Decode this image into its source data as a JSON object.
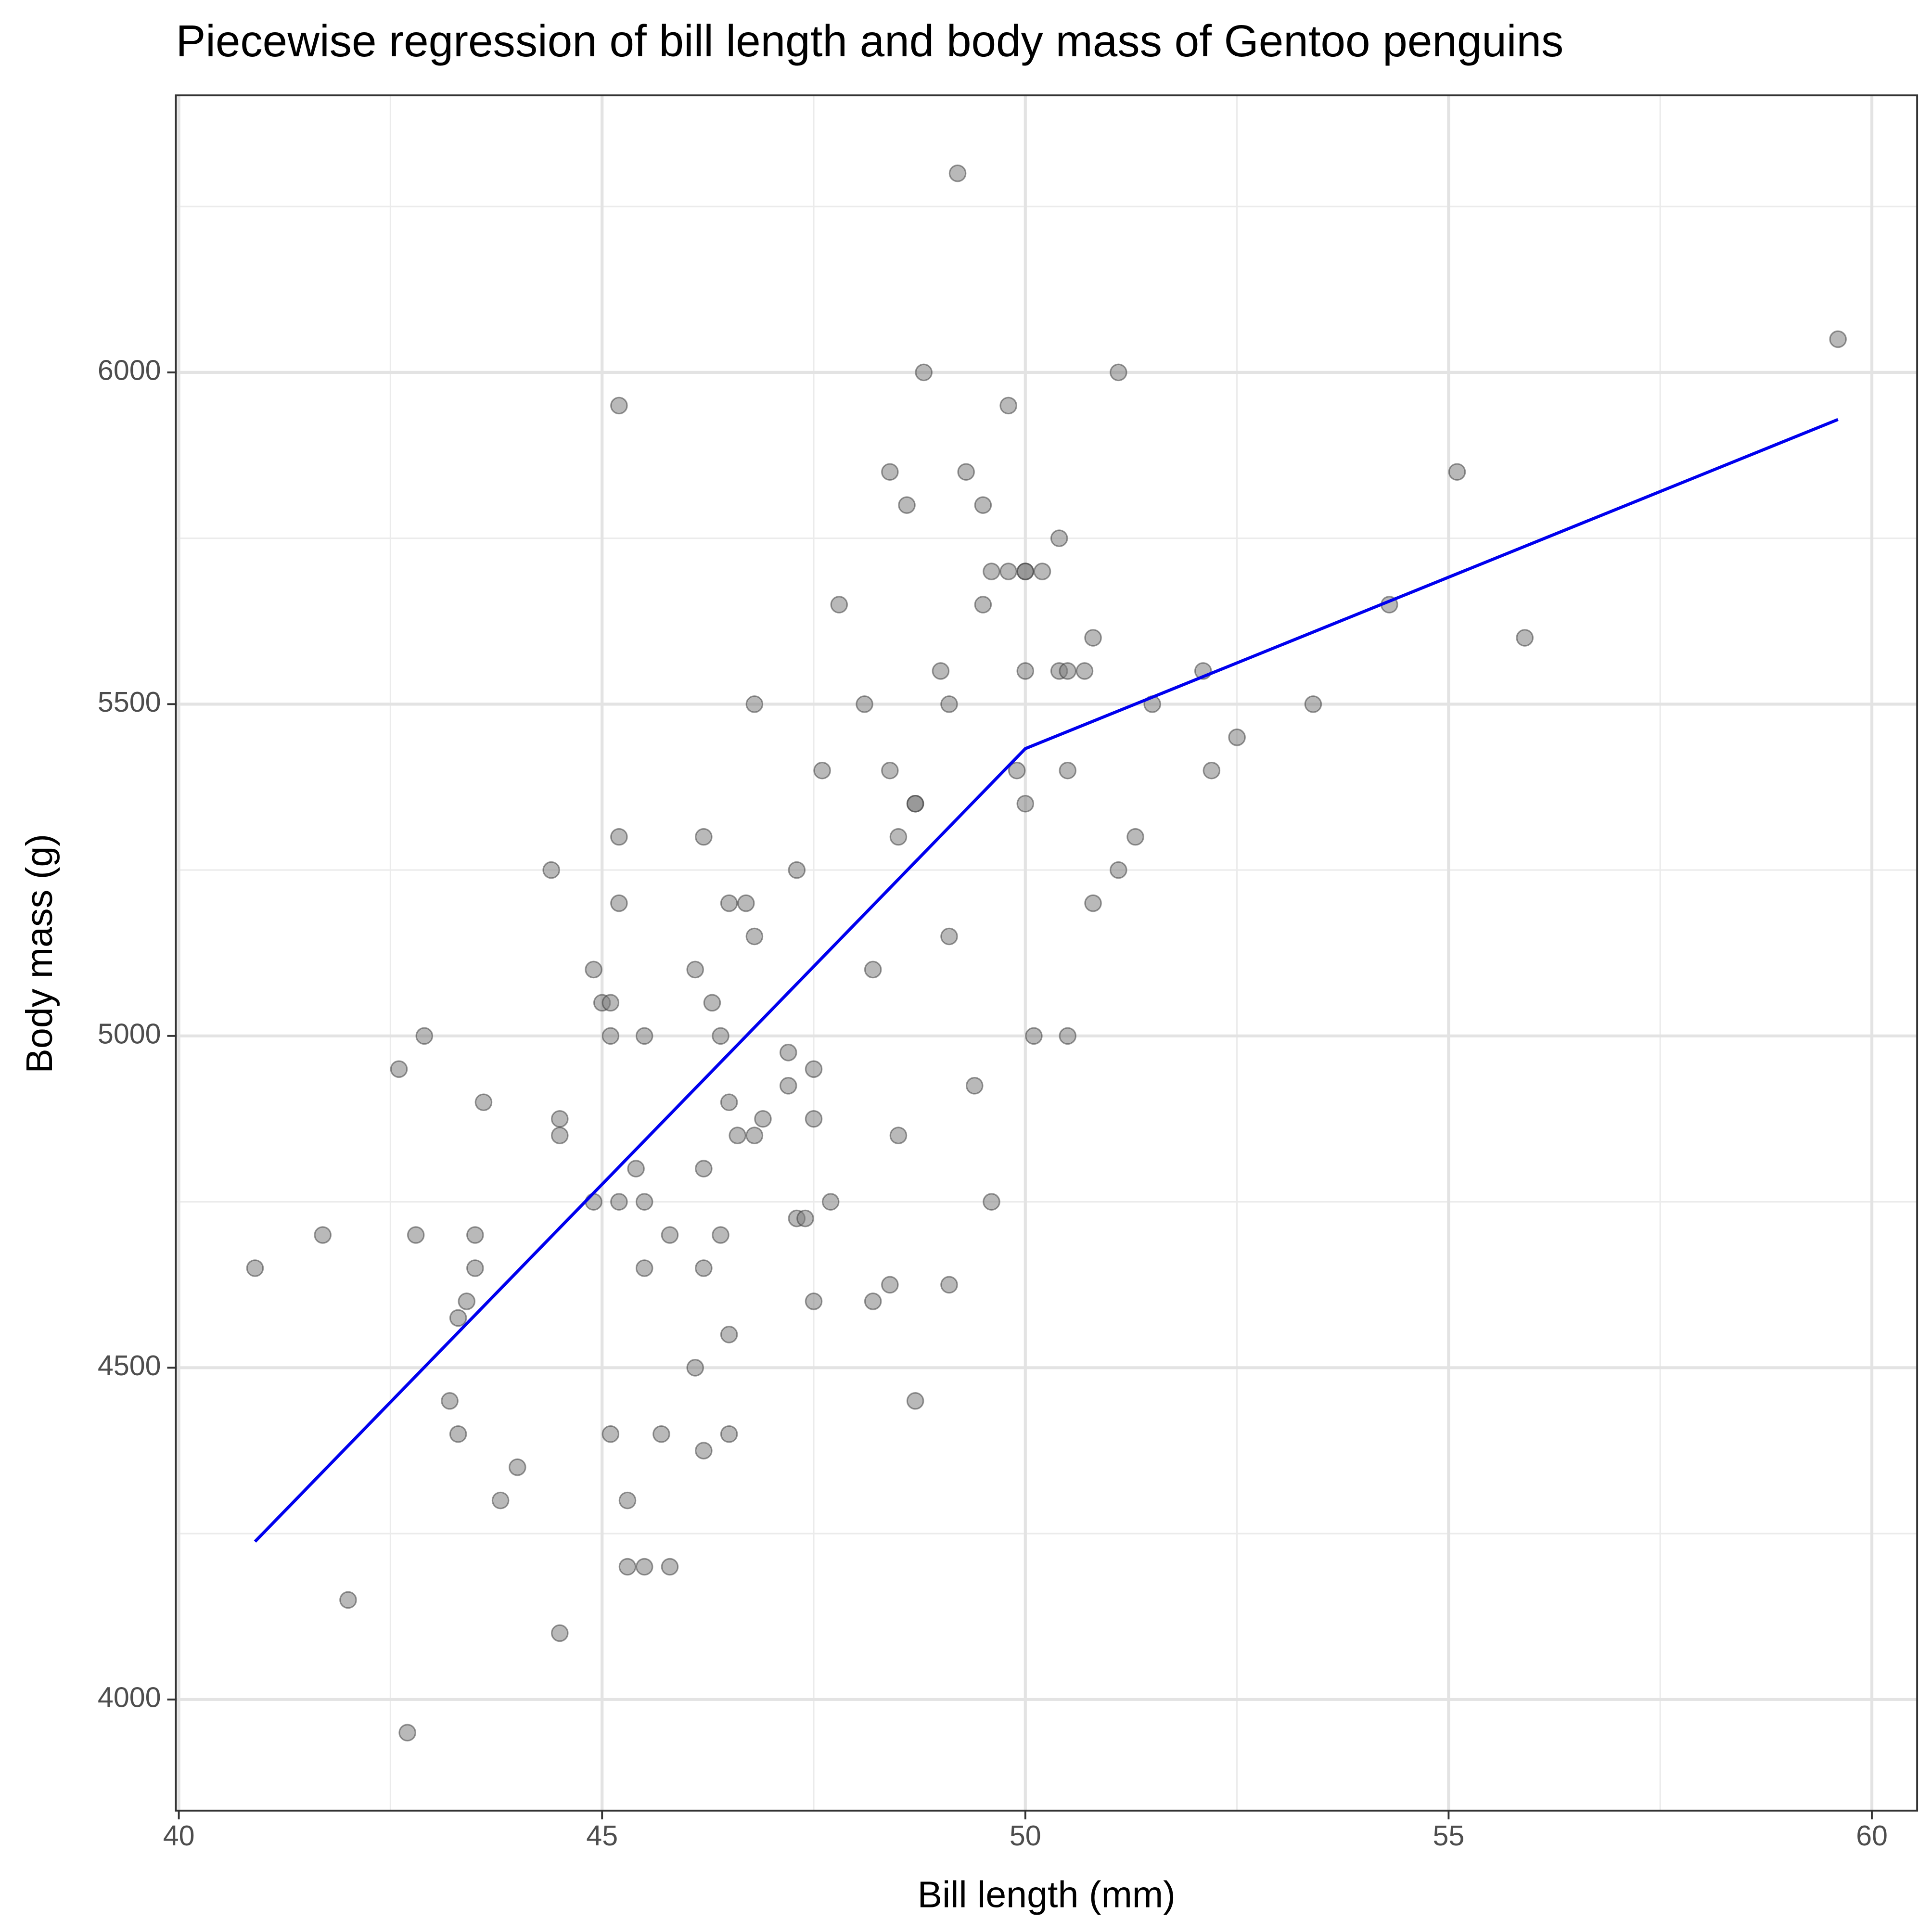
{
  "chart_data": {
    "type": "scatter",
    "title": "Piecewise regression of bill length and body mass of Gentoo penguins",
    "x_label": "Bill length (mm)",
    "y_label": "Body mass (g)",
    "xlim": [
      39.965,
      60.535
    ],
    "ylim": [
      3832.5,
      6417.5
    ],
    "xticks": [
      40,
      45,
      50,
      55,
      60
    ],
    "yticks": [
      4000,
      4500,
      5000,
      5500,
      6000
    ],
    "x_minor_grid": [
      42.5,
      47.5,
      52.5,
      57.5
    ],
    "y_minor_grid": [
      4250,
      4750,
      5250,
      5750,
      6250
    ],
    "grid": true,
    "points": {
      "color": "#7f7f7f",
      "x": [
        40.9,
        41.7,
        42.0,
        42.6,
        42.7,
        42.8,
        42.9,
        43.2,
        43.3,
        43.3,
        43.4,
        43.5,
        43.5,
        43.6,
        43.8,
        44.0,
        44.4,
        44.5,
        44.5,
        44.5,
        44.9,
        44.9,
        45.0,
        45.1,
        45.1,
        45.1,
        45.2,
        45.2,
        45.2,
        45.2,
        45.3,
        45.3,
        45.4,
        45.5,
        45.5,
        45.5,
        45.5,
        45.7,
        45.8,
        45.8,
        46.1,
        46.1,
        46.2,
        46.2,
        46.2,
        46.2,
        46.3,
        46.4,
        46.4,
        46.5,
        46.5,
        46.5,
        46.5,
        46.6,
        46.7,
        46.8,
        46.8,
        46.8,
        46.9,
        47.2,
        47.2,
        47.3,
        47.3,
        47.4,
        47.5,
        47.5,
        47.5,
        47.6,
        47.7,
        47.8,
        48.1,
        48.2,
        48.2,
        48.4,
        48.4,
        48.4,
        48.5,
        48.5,
        48.6,
        48.7,
        48.7,
        48.7,
        48.8,
        49.0,
        49.1,
        49.1,
        49.1,
        49.2,
        49.3,
        49.4,
        49.5,
        49.5,
        49.6,
        49.6,
        49.8,
        49.8,
        49.9,
        50.0,
        50.0,
        50.0,
        50.0,
        50.1,
        50.2,
        50.4,
        50.4,
        50.5,
        50.5,
        50.5,
        50.7,
        50.8,
        50.8,
        51.1,
        51.1,
        51.3,
        51.5,
        52.1,
        52.2,
        52.5,
        53.4,
        54.3,
        55.1,
        55.9,
        59.6
      ],
      "y": [
        4650,
        4700,
        4150,
        4950,
        3950,
        4700,
        5000,
        4450,
        4575,
        4400,
        4600,
        4700,
        4650,
        4900,
        4300,
        4350,
        5250,
        4875,
        4850,
        4100,
        5100,
        4750,
        5050,
        5050,
        5000,
        4400,
        5950,
        5300,
        5200,
        4750,
        4300,
        4200,
        4800,
        5000,
        4750,
        4650,
        4200,
        4400,
        4700,
        4200,
        5100,
        4500,
        5300,
        4800,
        4650,
        4375,
        5050,
        5000,
        4700,
        5200,
        4900,
        4550,
        4400,
        4850,
        5200,
        5500,
        5150,
        4850,
        4875,
        4975,
        4925,
        5250,
        4725,
        4725,
        4950,
        4875,
        4600,
        5400,
        4750,
        5650,
        5500,
        5100,
        4600,
        5850,
        5400,
        4625,
        5300,
        4850,
        5800,
        5350,
        5350,
        4450,
        6000,
        5550,
        5500,
        5150,
        4625,
        6300,
        5850,
        4925,
        5800,
        5650,
        5700,
        4750,
        5950,
        5700,
        5400,
        5700,
        5700,
        5550,
        5350,
        5000,
        5700,
        5750,
        5550,
        5550,
        5400,
        5000,
        5550,
        5600,
        5200,
        6000,
        5250,
        5300,
        5500,
        5550,
        5400,
        5450,
        5500,
        5650,
        5850,
        5600,
        6050
      ]
    },
    "fit": {
      "color": "#0000ee",
      "x": [
        40.9,
        50.0,
        59.6
      ],
      "y": [
        4238,
        5433,
        5929
      ]
    }
  }
}
